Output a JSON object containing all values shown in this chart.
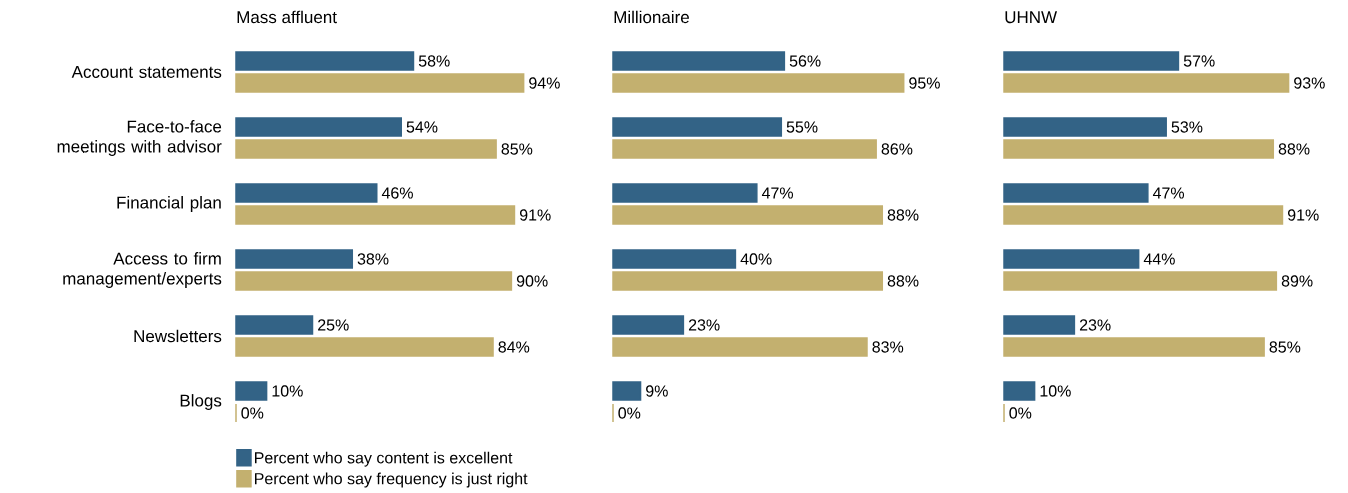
{
  "chart_data": [
    {
      "type": "bar",
      "orientation": "horizontal",
      "title": "Mass affluent",
      "categories": [
        "Account statements",
        "Face-to-face meetings with advisor",
        "Financial plan",
        "Access to firm management/experts",
        "Newsletters",
        "Blogs"
      ],
      "tick_labels": "y",
      "legend": "bottom left",
      "series": [
        {
          "name": "Percent who say content is excellent",
          "color": "#336386",
          "values": [
            58,
            54,
            46,
            38,
            25,
            10
          ],
          "value_labels": [
            "58%",
            "54%",
            "46%",
            "38%",
            "25%",
            "10%"
          ]
        },
        {
          "name": "Percent who say frequency is just right",
          "color": "#c3b06f",
          "values": [
            94,
            85,
            91,
            90,
            84,
            0
          ],
          "value_labels": [
            "94%",
            "85%",
            "91%",
            "90%",
            "84%",
            "0%"
          ]
        }
      ]
    },
    {
      "type": "bar",
      "orientation": "horizontal",
      "title": "Millionaire",
      "tick_labels": false,
      "series": [
        {
          "color": "#336386",
          "values": [
            56,
            55,
            47,
            40,
            23,
            9
          ],
          "value_labels": [
            "56%",
            "55%",
            "47%",
            "40%",
            "23%",
            "9%"
          ]
        },
        {
          "color": "#c3b06f",
          "values": [
            95,
            86,
            88,
            88,
            83,
            0
          ],
          "value_labels": [
            "95%",
            "86%",
            "88%",
            "88%",
            "83%",
            "0%"
          ]
        }
      ]
    },
    {
      "type": "bar",
      "orientation": "horizontal",
      "title": "UHNW",
      "tick_labels": false,
      "series": [
        {
          "color": "#336386",
          "values": [
            57,
            53,
            47,
            44,
            23,
            10
          ],
          "value_labels": [
            "57%",
            "53%",
            "47%",
            "44%",
            "23%",
            "10%"
          ]
        },
        {
          "color": "#c3b06f",
          "values": [
            93,
            88,
            91,
            89,
            85,
            0
          ],
          "value_labels": [
            "93%",
            "88%",
            "91%",
            "89%",
            "85%",
            "0%"
          ]
        }
      ]
    }
  ]
}
